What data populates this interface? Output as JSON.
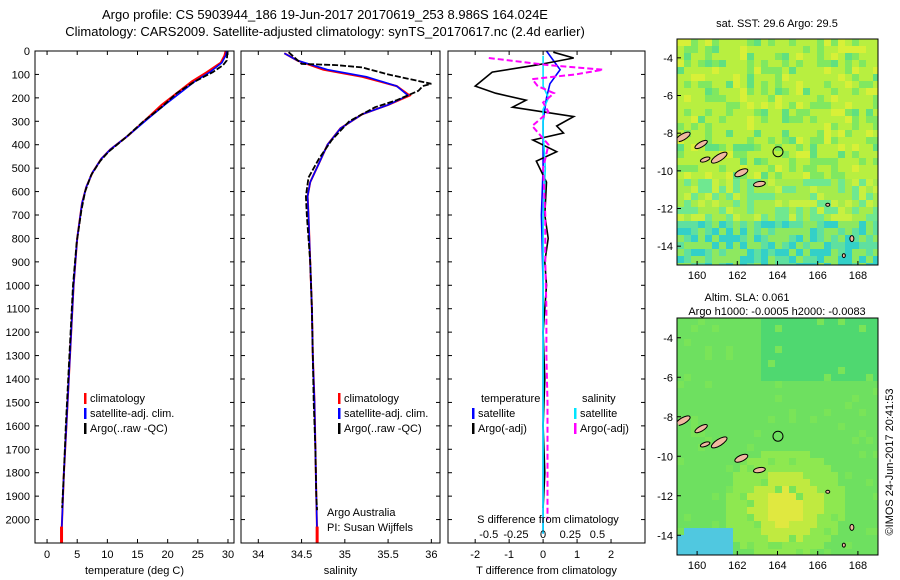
{
  "header": {
    "line1": "Argo profile: CS 5903944_186 19-Jun-2017 20170619_253 8.986S 164.024E",
    "line2": "Climatology: CARS2009. Satellite-adjusted climatology: synTS_20170617.nc (2.4d earlier)"
  },
  "depth_ticks": [
    "0",
    "100",
    "200",
    "300",
    "400",
    "500",
    "600",
    "700",
    "800",
    "900",
    "1000",
    "1100",
    "1200",
    "1300",
    "1400",
    "1500",
    "1600",
    "1700",
    "1800",
    "1900",
    "2000"
  ],
  "colors": {
    "climatology": "#ff0000",
    "satellite": "#0000ff",
    "argo": "#000000",
    "sal_satellite": "#00e5ff",
    "sal_argo": "#ff00ff"
  },
  "chart_data": [
    {
      "type": "line",
      "xlabel": "temperature (deg C)",
      "x_ticks": [
        "0",
        "5",
        "10",
        "15",
        "20",
        "25",
        "30"
      ],
      "xlim": [
        -2,
        31
      ],
      "ylim": [
        2100,
        0
      ],
      "legend": [
        "climatology",
        "satellite-adj. clim.",
        "Argo(..raw -QC)"
      ],
      "series": [
        {
          "name": "climatology",
          "points": [
            [
              29.6,
              0
            ],
            [
              29.4,
              20
            ],
            [
              28.8,
              50
            ],
            [
              26.5,
              90
            ],
            [
              24,
              130
            ],
            [
              21.5,
              180
            ],
            [
              19,
              230
            ],
            [
              16.5,
              290
            ],
            [
              13.5,
              360
            ],
            [
              10.5,
              420
            ],
            [
              9,
              460
            ],
            [
              7.5,
              520
            ],
            [
              6.5,
              580
            ],
            [
              5.8,
              650
            ],
            [
              5,
              800
            ],
            [
              4.4,
              1000
            ],
            [
              4,
              1200
            ],
            [
              3.6,
              1400
            ],
            [
              3.2,
              1600
            ],
            [
              2.8,
              1800
            ],
            [
              2.5,
              2000
            ],
            [
              2.4,
              2060
            ]
          ]
        },
        {
          "name": "satellite-adj. clim.",
          "points": [
            [
              29.8,
              0
            ],
            [
              29.6,
              20
            ],
            [
              29,
              50
            ],
            [
              27,
              90
            ],
            [
              24.5,
              130
            ],
            [
              22,
              180
            ],
            [
              19.5,
              230
            ],
            [
              16.7,
              290
            ],
            [
              13.5,
              360
            ],
            [
              10.5,
              420
            ],
            [
              9,
              460
            ],
            [
              7.5,
              520
            ],
            [
              6.5,
              580
            ],
            [
              5.8,
              650
            ],
            [
              5,
              800
            ],
            [
              4.4,
              1000
            ],
            [
              4,
              1200
            ],
            [
              3.6,
              1400
            ],
            [
              3.2,
              1600
            ],
            [
              2.8,
              1800
            ],
            [
              2.5,
              2000
            ],
            [
              2.4,
              2060
            ]
          ]
        },
        {
          "name": "Argo(..raw -QC)",
          "points": [
            [
              29.9,
              5
            ],
            [
              29.8,
              40
            ],
            [
              29.2,
              60
            ],
            [
              27.5,
              90
            ],
            [
              24.5,
              130
            ],
            [
              21.5,
              180
            ],
            [
              19,
              240
            ],
            [
              16,
              300
            ],
            [
              13,
              370
            ],
            [
              10.2,
              430
            ],
            [
              8.8,
              470
            ],
            [
              7.3,
              530
            ],
            [
              6.3,
              600
            ],
            [
              5.7,
              680
            ],
            [
              4.9,
              820
            ],
            [
              4.3,
              1000
            ],
            [
              3.9,
              1200
            ],
            [
              3.5,
              1400
            ],
            [
              3.1,
              1600
            ],
            [
              2.8,
              1800
            ],
            [
              2.5,
              1950
            ]
          ]
        }
      ]
    },
    {
      "type": "line",
      "xlabel": "salinity",
      "x_ticks": [
        "34",
        "34.5",
        "35",
        "35.5",
        "36"
      ],
      "xlim": [
        33.8,
        36.1
      ],
      "ylim": [
        2100,
        0
      ],
      "legend": [
        "climatology",
        "satellite-adj. clim.",
        "Argo(..raw -QC)"
      ],
      "annotation": [
        "Argo Australia",
        "PI: Susan Wijffels"
      ],
      "series": [
        {
          "name": "climatology",
          "points": [
            [
              34.3,
              10
            ],
            [
              34.45,
              40
            ],
            [
              34.75,
              80
            ],
            [
              35.2,
              110
            ],
            [
              35.6,
              150
            ],
            [
              35.75,
              190
            ],
            [
              35.5,
              230
            ],
            [
              35.2,
              270
            ],
            [
              34.95,
              330
            ],
            [
              34.8,
              400
            ],
            [
              34.7,
              480
            ],
            [
              34.6,
              560
            ],
            [
              34.57,
              620
            ],
            [
              34.58,
              700
            ],
            [
              34.6,
              900
            ],
            [
              34.62,
              1100
            ],
            [
              34.63,
              1300
            ],
            [
              34.65,
              1500
            ],
            [
              34.66,
              1700
            ],
            [
              34.67,
              1900
            ],
            [
              34.68,
              2060
            ]
          ]
        },
        {
          "name": "satellite-adj. clim.",
          "points": [
            [
              34.3,
              10
            ],
            [
              34.45,
              40
            ],
            [
              34.8,
              80
            ],
            [
              35.25,
              110
            ],
            [
              35.6,
              150
            ],
            [
              35.73,
              190
            ],
            [
              35.5,
              230
            ],
            [
              35.2,
              270
            ],
            [
              34.95,
              330
            ],
            [
              34.8,
              400
            ],
            [
              34.7,
              480
            ],
            [
              34.6,
              560
            ],
            [
              34.57,
              620
            ],
            [
              34.58,
              700
            ],
            [
              34.6,
              900
            ],
            [
              34.62,
              1100
            ],
            [
              34.63,
              1300
            ],
            [
              34.65,
              1500
            ],
            [
              34.66,
              1700
            ],
            [
              34.67,
              1900
            ],
            [
              34.68,
              2060
            ]
          ]
        },
        {
          "name": "Argo(..raw -QC)",
          "points": [
            [
              34.35,
              5
            ],
            [
              34.5,
              55
            ],
            [
              34.9,
              60
            ],
            [
              35.2,
              70
            ],
            [
              35.5,
              100
            ],
            [
              36.0,
              140
            ],
            [
              35.9,
              150
            ],
            [
              35.85,
              170
            ],
            [
              35.6,
              210
            ],
            [
              35.35,
              240
            ],
            [
              35.05,
              300
            ],
            [
              34.85,
              380
            ],
            [
              34.7,
              460
            ],
            [
              34.58,
              540
            ],
            [
              34.55,
              620
            ],
            [
              34.56,
              700
            ],
            [
              34.6,
              900
            ],
            [
              34.62,
              1100
            ],
            [
              34.63,
              1300
            ],
            [
              34.64,
              1500
            ],
            [
              34.66,
              1700
            ],
            [
              34.67,
              1900
            ],
            [
              34.68,
              1960
            ]
          ]
        }
      ]
    },
    {
      "type": "line",
      "xlabel": "T difference from climatology",
      "top_xlabel": "S difference from climatology",
      "x_ticks": [
        "-2",
        "-1",
        "0",
        "1",
        "2"
      ],
      "top_x_ticks": [
        "-0.5",
        "-0.25",
        "0",
        "0.25",
        "0.5"
      ],
      "xlim": [
        -2.8,
        3.0
      ],
      "ylim": [
        2100,
        0
      ],
      "legend_temperature_title": "temperature",
      "legend_salinity_title": "salinity",
      "legend": [
        "satellite",
        "Argo(-adj)",
        "satellite",
        "Argo(-adj)"
      ],
      "series": [
        {
          "name": "temperature satellite",
          "points": [
            [
              0.1,
              0
            ],
            [
              0.3,
              40
            ],
            [
              0.5,
              80
            ],
            [
              0.4,
              100
            ],
            [
              0.2,
              140
            ],
            [
              0.1,
              200
            ],
            [
              0,
              300
            ],
            [
              0,
              500
            ],
            [
              -0.05,
              700
            ],
            [
              0,
              1000
            ],
            [
              0,
              1500
            ],
            [
              0,
              2060
            ]
          ]
        },
        {
          "name": "temperature Argo(-adj)",
          "points": [
            [
              0.3,
              5
            ],
            [
              0.9,
              30
            ],
            [
              -0.2,
              60
            ],
            [
              -1.5,
              90
            ],
            [
              -2.0,
              150
            ],
            [
              -1.4,
              180
            ],
            [
              -0.5,
              210
            ],
            [
              -0.9,
              240
            ],
            [
              0.9,
              280
            ],
            [
              0.4,
              320
            ],
            [
              0.6,
              350
            ],
            [
              -0.3,
              380
            ],
            [
              0.4,
              430
            ],
            [
              -0.2,
              470
            ],
            [
              0.1,
              560
            ],
            [
              0.05,
              700
            ],
            [
              0.15,
              800
            ],
            [
              0.05,
              900
            ],
            [
              0.1,
              1000
            ],
            [
              0,
              1200
            ],
            [
              0.05,
              1400
            ],
            [
              0,
              1600
            ],
            [
              0.05,
              1800
            ],
            [
              0,
              1950
            ]
          ]
        },
        {
          "name": "salinity satellite",
          "points": [
            [
              0,
              20
            ],
            [
              0,
              60
            ],
            [
              0,
              100
            ],
            [
              0,
              150
            ],
            [
              0.05,
              200
            ],
            [
              0,
              250
            ],
            [
              0,
              350
            ],
            [
              0.02,
              500
            ],
            [
              0,
              700
            ],
            [
              0,
              1000
            ],
            [
              0,
              1500
            ],
            [
              0,
              2060
            ]
          ]
        },
        {
          "name": "salinity Argo(-adj)",
          "points": [
            [
              -0.5,
              30
            ],
            [
              0.05,
              60
            ],
            [
              0.55,
              80
            ],
            [
              0.3,
              100
            ],
            [
              -0.1,
              120
            ],
            [
              -0.05,
              150
            ],
            [
              0.1,
              180
            ],
            [
              0,
              220
            ],
            [
              0.05,
              260
            ],
            [
              -0.1,
              320
            ],
            [
              0.05,
              400
            ],
            [
              0,
              500
            ],
            [
              0.02,
              700
            ],
            [
              0.02,
              900
            ],
            [
              0.03,
              1100
            ],
            [
              0.03,
              1300
            ],
            [
              0.04,
              1500
            ],
            [
              0.04,
              1700
            ],
            [
              0.04,
              1900
            ],
            [
              0.04,
              2000
            ]
          ]
        }
      ]
    },
    {
      "type": "heatmap",
      "title": "sat. SST: 29.6 Argo: 29.5",
      "x_ticks": [
        "160",
        "162",
        "164",
        "166",
        "168"
      ],
      "y_ticks": [
        "-4",
        "-6",
        "-8",
        "-10",
        "-12",
        "-14"
      ],
      "xlim": [
        159,
        169
      ],
      "ylim": [
        -15,
        -3
      ],
      "argo_position": [
        164.024,
        -8.986
      ]
    },
    {
      "type": "heatmap",
      "title": "Altim. SLA: 0.061",
      "subtitle": "Argo h1000: -0.0005 h2000: -0.0083",
      "x_ticks": [
        "160",
        "162",
        "164",
        "166",
        "168"
      ],
      "y_ticks": [
        "-4",
        "-6",
        "-8",
        "-10",
        "-12",
        "-14"
      ],
      "xlim": [
        159,
        169
      ],
      "ylim": [
        -15,
        -3
      ],
      "argo_position": [
        164.024,
        -8.986
      ]
    }
  ],
  "footer": {
    "credit": "©IMOS 24-Jun-2017 20:41:53"
  }
}
